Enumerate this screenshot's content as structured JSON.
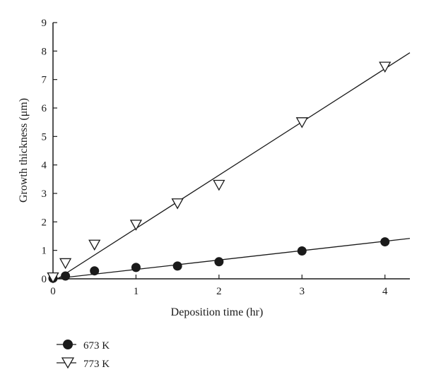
{
  "chart_data": {
    "type": "scatter",
    "xlabel": "Deposition time (hr)",
    "ylabel": "Growth thickness (μm)",
    "xlim": [
      0,
      4.3
    ],
    "ylim": [
      0,
      9
    ],
    "x_ticks": [
      0,
      1,
      2,
      3,
      4
    ],
    "y_ticks": [
      0,
      1,
      2,
      3,
      4,
      5,
      6,
      7,
      8,
      9
    ],
    "grid": false,
    "legend_position": "bottom-left",
    "series": [
      {
        "name": "673 K",
        "marker": "filled-circle",
        "color": "#1a1a1a",
        "x": [
          0,
          0.15,
          0.5,
          1,
          1.5,
          2,
          3,
          4
        ],
        "y": [
          0.02,
          0.1,
          0.28,
          0.4,
          0.45,
          0.6,
          0.98,
          1.3
        ],
        "fit": {
          "slope": 0.33,
          "intercept": 0.0
        }
      },
      {
        "name": "773 K",
        "marker": "open-triangle-down",
        "color": "#1a1a1a",
        "x": [
          0,
          0.15,
          0.5,
          1,
          1.5,
          2,
          3,
          4
        ],
        "y": [
          0.05,
          0.55,
          1.2,
          1.9,
          2.65,
          3.3,
          5.5,
          7.45
        ],
        "fit": {
          "slope": 1.87,
          "intercept": -0.1
        }
      }
    ]
  }
}
